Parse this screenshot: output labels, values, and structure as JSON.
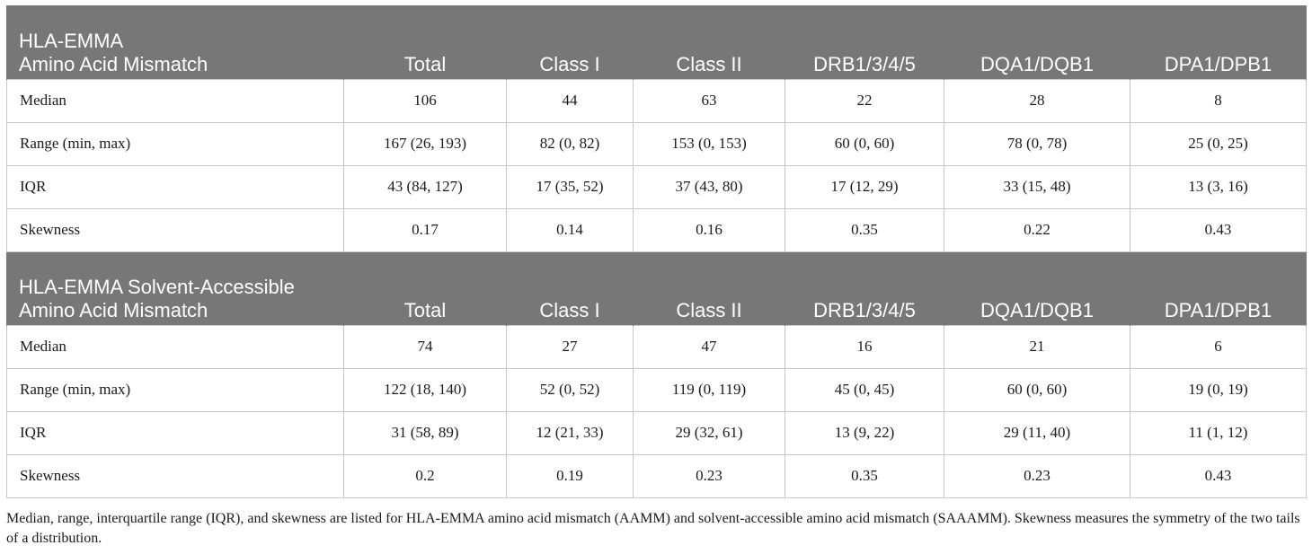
{
  "sections": [
    {
      "title_lines": [
        "HLA-EMMA",
        "Amino Acid Mismatch"
      ],
      "columns": [
        "Total",
        "Class I",
        "Class II",
        "DRB1/3/4/5",
        "DQA1/DQB1",
        "DPA1/DPB1"
      ],
      "rows": [
        {
          "label": "Median",
          "cells": [
            "106",
            "44",
            "63",
            "22",
            "28",
            "8"
          ]
        },
        {
          "label": "Range (min, max)",
          "cells": [
            "167 (26, 193)",
            "82 (0, 82)",
            "153 (0, 153)",
            "60 (0, 60)",
            "78 (0, 78)",
            "25 (0, 25)"
          ]
        },
        {
          "label": "IQR",
          "cells": [
            "43 (84, 127)",
            "17 (35, 52)",
            "37 (43, 80)",
            "17 (12, 29)",
            "33 (15, 48)",
            "13 (3, 16)"
          ]
        },
        {
          "label": "Skewness",
          "cells": [
            "0.17",
            "0.14",
            "0.16",
            "0.35",
            "0.22",
            "0.43"
          ]
        }
      ]
    },
    {
      "title_lines": [
        "HLA-EMMA Solvent-Accessible",
        "Amino Acid Mismatch"
      ],
      "columns": [
        "Total",
        "Class I",
        "Class II",
        "DRB1/3/4/5",
        "DQA1/DQB1",
        "DPA1/DPB1"
      ],
      "rows": [
        {
          "label": "Median",
          "cells": [
            "74",
            "27",
            "47",
            "16",
            "21",
            "6"
          ]
        },
        {
          "label": "Range (min, max)",
          "cells": [
            "122 (18, 140)",
            "52 (0, 52)",
            "119 (0, 119)",
            "45 (0, 45)",
            "60 (0, 60)",
            "19 (0, 19)"
          ]
        },
        {
          "label": "IQR",
          "cells": [
            "31 (58, 89)",
            "12 (21, 33)",
            "29 (32, 61)",
            "13 (9, 22)",
            "29 (11, 40)",
            "11 (1, 12)"
          ]
        },
        {
          "label": "Skewness",
          "cells": [
            "0.2",
            "0.19",
            "0.23",
            "0.35",
            "0.23",
            "0.43"
          ]
        }
      ]
    }
  ],
  "footnote": "Median, range, interquartile range (IQR), and skewness are listed for HLA-EMMA amino acid mismatch (AAMM) and solvent-accessible amino acid mismatch (SAAAMM). Skewness measures the symmetry of the two tails of a distribution.",
  "colors": {
    "header_bg": "#777777",
    "header_text": "#ffffff",
    "grid_line": "#c8c8c8",
    "body_text": "#1a1a1a"
  }
}
